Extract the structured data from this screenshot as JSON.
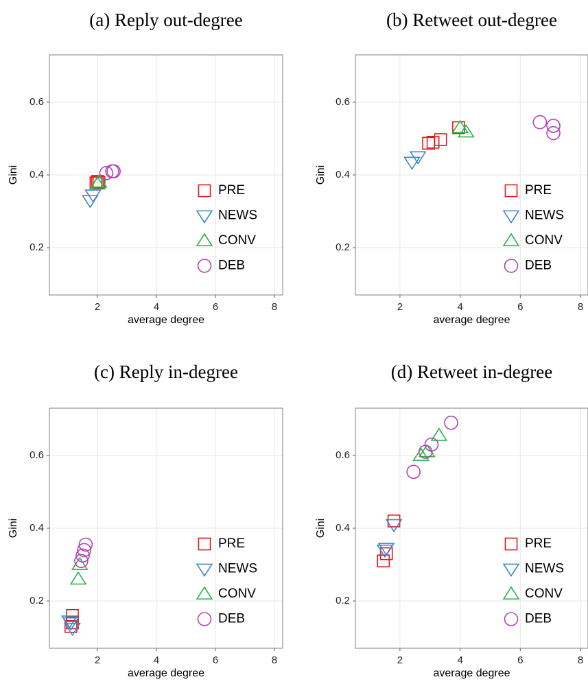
{
  "chart_data": [
    {
      "type": "scatter",
      "title": "(a) Reply out-degree",
      "x_label": "average degree",
      "y_label": "Gini",
      "xlim": [
        0.37,
        8.28
      ],
      "ylim": [
        0.07,
        0.73
      ],
      "xticks": [
        2,
        4,
        6,
        8
      ],
      "yticks": [
        0.2,
        0.4,
        0.6
      ],
      "grid": true,
      "legend": "lower right",
      "series": [
        {
          "name": "PRE",
          "color": "#e3191c",
          "marker": "square",
          "x": [
            1.95,
            2.0,
            2.05
          ],
          "values": [
            0.378,
            0.382,
            0.38
          ]
        },
        {
          "name": "NEWS",
          "color": "#3a87c8",
          "marker": "triangle-down",
          "x": [
            1.75,
            1.85
          ],
          "values": [
            0.33,
            0.345
          ]
        },
        {
          "name": "CONV",
          "color": "#2bb34a",
          "marker": "triangle-up",
          "x": [
            2.0,
            2.05
          ],
          "values": [
            0.375,
            0.38
          ]
        },
        {
          "name": "DEB",
          "color": "#b044b8",
          "marker": "circle",
          "x": [
            2.3,
            2.5,
            2.55
          ],
          "values": [
            0.405,
            0.41,
            0.41
          ]
        }
      ]
    },
    {
      "type": "scatter",
      "title": "(b) Retweet out-degree",
      "x_label": "average degree",
      "y_label": "Gini",
      "xlim": [
        0.52,
        8.25
      ],
      "ylim": [
        0.07,
        0.73
      ],
      "xticks": [
        2,
        4,
        6,
        8
      ],
      "yticks": [
        0.2,
        0.4,
        0.6
      ],
      "grid": true,
      "legend": "lower right",
      "series": [
        {
          "name": "PRE",
          "color": "#e3191c",
          "marker": "square",
          "x": [
            2.95,
            3.1,
            3.35,
            3.95
          ],
          "values": [
            0.487,
            0.49,
            0.497,
            0.53
          ]
        },
        {
          "name": "NEWS",
          "color": "#3a87c8",
          "marker": "triangle-down",
          "x": [
            2.4,
            2.6
          ],
          "values": [
            0.435,
            0.45
          ]
        },
        {
          "name": "CONV",
          "color": "#2bb34a",
          "marker": "triangle-up",
          "x": [
            4.0,
            4.2
          ],
          "values": [
            0.53,
            0.518
          ]
        },
        {
          "name": "DEB",
          "color": "#b044b8",
          "marker": "circle",
          "x": [
            6.65,
            7.1,
            7.1
          ],
          "values": [
            0.545,
            0.535,
            0.515
          ]
        }
      ]
    },
    {
      "type": "scatter",
      "title": "(c) Reply in-degree",
      "x_label": "average degree",
      "y_label": "Gini",
      "xlim": [
        0.37,
        8.28
      ],
      "ylim": [
        0.07,
        0.73
      ],
      "xticks": [
        2,
        4,
        6,
        8
      ],
      "yticks": [
        0.2,
        0.4,
        0.6
      ],
      "grid": true,
      "legend": "lower right",
      "series": [
        {
          "name": "PRE",
          "color": "#e3191c",
          "marker": "square",
          "x": [
            1.15,
            1.15,
            1.1
          ],
          "values": [
            0.16,
            0.14,
            0.13
          ]
        },
        {
          "name": "NEWS",
          "color": "#3a87c8",
          "marker": "triangle-down",
          "x": [
            1.1,
            1.15,
            1.05
          ],
          "values": [
            0.14,
            0.125,
            0.145
          ]
        },
        {
          "name": "CONV",
          "color": "#2bb34a",
          "marker": "triangle-up",
          "x": [
            1.35,
            1.4
          ],
          "values": [
            0.26,
            0.3
          ]
        },
        {
          "name": "DEB",
          "color": "#b044b8",
          "marker": "circle",
          "x": [
            1.45,
            1.5,
            1.55,
            1.6
          ],
          "values": [
            0.31,
            0.325,
            0.34,
            0.355
          ]
        }
      ]
    },
    {
      "type": "scatter",
      "title": "(d) Retweet in-degree",
      "x_label": "average degree",
      "y_label": "Gini",
      "xlim": [
        0.52,
        8.25
      ],
      "ylim": [
        0.07,
        0.73
      ],
      "xticks": [
        2,
        4,
        6,
        8
      ],
      "yticks": [
        0.2,
        0.4,
        0.6
      ],
      "grid": true,
      "legend": "lower right",
      "series": [
        {
          "name": "PRE",
          "color": "#e3191c",
          "marker": "square",
          "x": [
            1.45,
            1.55,
            1.8
          ],
          "values": [
            0.31,
            0.33,
            0.42
          ]
        },
        {
          "name": "NEWS",
          "color": "#3a87c8",
          "marker": "triangle-down",
          "x": [
            1.5,
            1.8,
            1.55
          ],
          "values": [
            0.34,
            0.41,
            0.345
          ]
        },
        {
          "name": "CONV",
          "color": "#2bb34a",
          "marker": "triangle-up",
          "x": [
            2.7,
            2.9,
            3.3
          ],
          "values": [
            0.6,
            0.61,
            0.655
          ]
        },
        {
          "name": "DEB",
          "color": "#b044b8",
          "marker": "circle",
          "x": [
            2.45,
            2.85,
            3.05,
            3.7
          ],
          "values": [
            0.555,
            0.61,
            0.63,
            0.69
          ]
        }
      ]
    }
  ]
}
